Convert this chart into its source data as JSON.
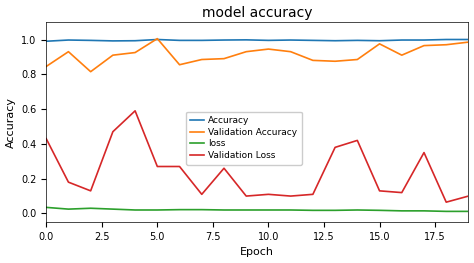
{
  "title": "model accuracy",
  "xlabel": "Epoch",
  "ylabel": "Accuracy",
  "epochs": [
    0,
    1,
    2,
    3,
    4,
    5,
    6,
    7,
    8,
    9,
    10,
    11,
    12,
    13,
    14,
    15,
    16,
    17,
    18,
    19
  ],
  "accuracy": [
    0.99,
    0.997,
    0.995,
    0.992,
    0.993,
    1.0,
    0.995,
    0.995,
    0.997,
    0.998,
    0.995,
    0.997,
    0.995,
    0.993,
    0.995,
    0.993,
    0.997,
    0.997,
    1.0,
    1.0
  ],
  "val_accuracy": [
    0.845,
    0.93,
    0.815,
    0.91,
    0.925,
    1.005,
    0.855,
    0.885,
    0.89,
    0.93,
    0.945,
    0.93,
    0.88,
    0.875,
    0.885,
    0.975,
    0.91,
    0.965,
    0.97,
    0.985
  ],
  "loss": [
    0.035,
    0.025,
    0.03,
    0.025,
    0.02,
    0.02,
    0.022,
    0.022,
    0.02,
    0.02,
    0.02,
    0.02,
    0.018,
    0.018,
    0.02,
    0.018,
    0.015,
    0.015,
    0.012,
    0.012
  ],
  "val_loss": [
    0.43,
    0.18,
    0.13,
    0.47,
    0.59,
    0.27,
    0.27,
    0.11,
    0.26,
    0.1,
    0.11,
    0.1,
    0.11,
    0.38,
    0.42,
    0.13,
    0.12,
    0.35,
    0.065,
    0.1
  ],
  "accuracy_color": "#1f77b4",
  "val_accuracy_color": "#ff7f0e",
  "loss_color": "#2ca02c",
  "val_loss_color": "#d62728",
  "legend_labels": [
    "Accuracy",
    "Validation Accuracy",
    "loss",
    "Validation Loss"
  ],
  "fig_bg_color": "#ffffff",
  "ax_bg_color": "#ffffff",
  "xlim": [
    0.0,
    19.0
  ],
  "ylim": [
    -0.05,
    1.1
  ],
  "xticks": [
    0.0,
    2.5,
    5.0,
    7.5,
    10.0,
    12.5,
    15.0,
    17.5
  ],
  "yticks": [
    0.0,
    0.2,
    0.4,
    0.6,
    0.8,
    1.0
  ],
  "title_fontsize": 10,
  "axis_label_fontsize": 8,
  "tick_fontsize": 7,
  "legend_fontsize": 6.5,
  "linewidth": 1.2
}
